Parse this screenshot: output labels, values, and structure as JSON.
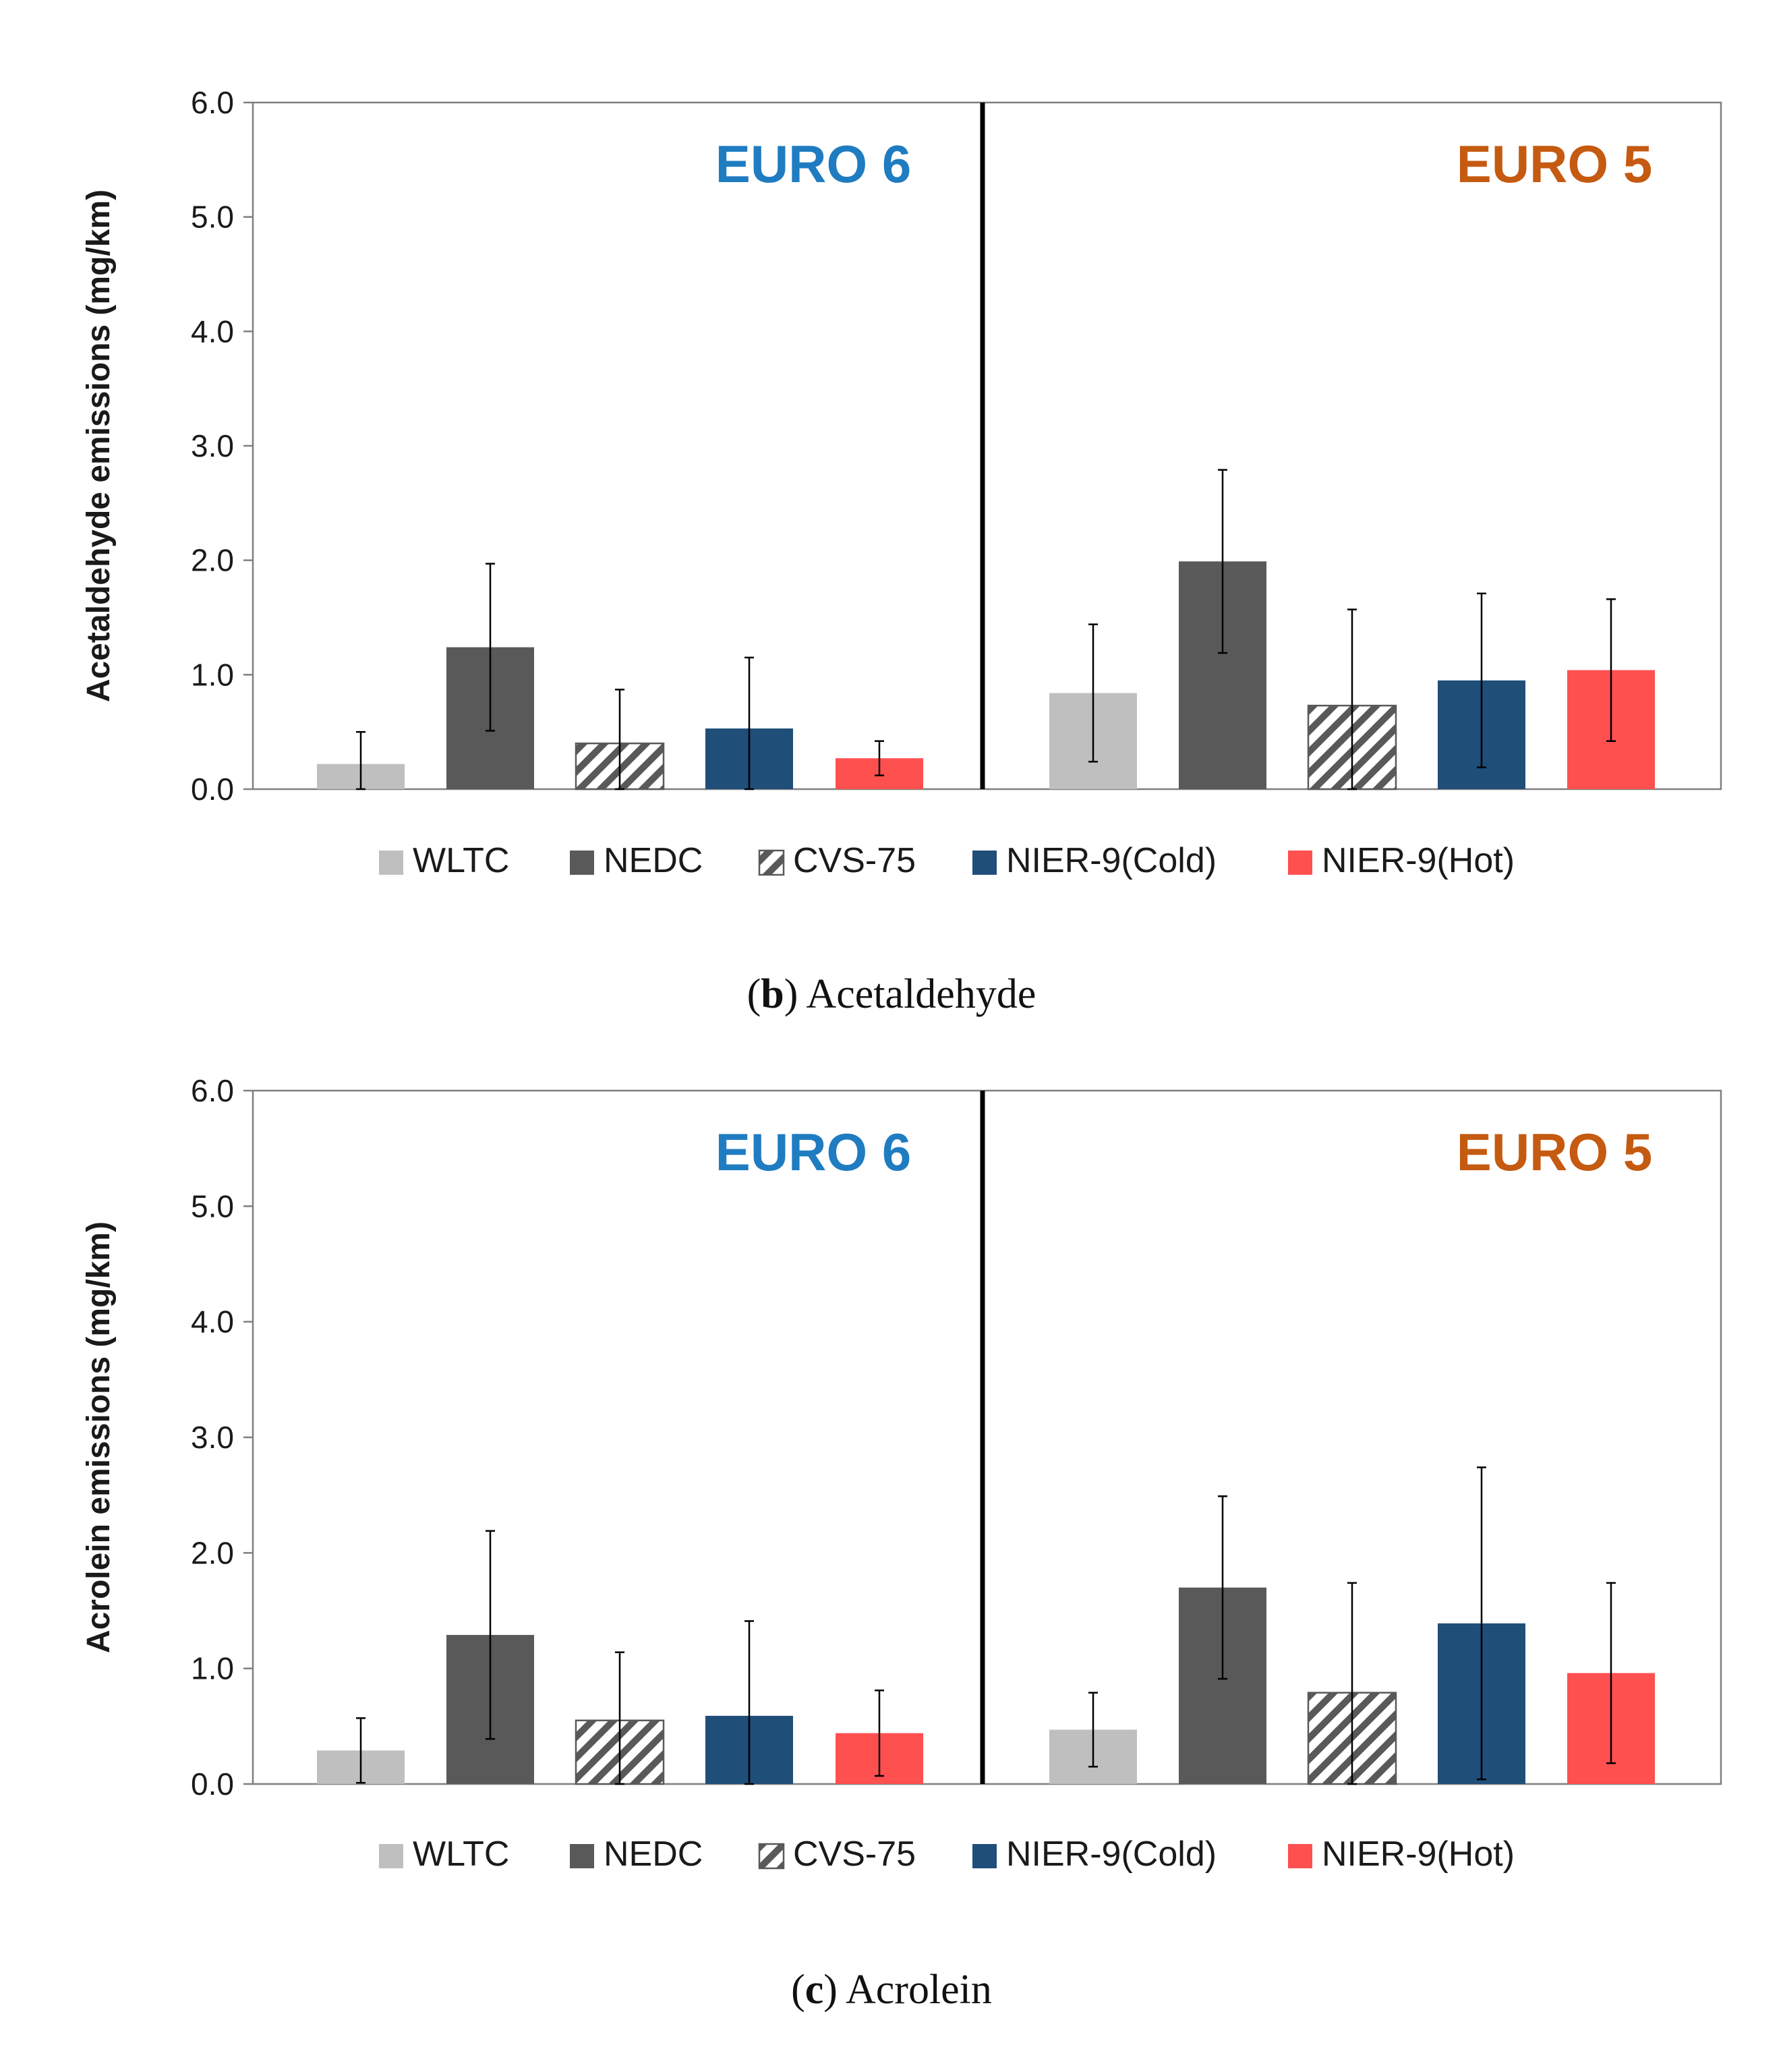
{
  "chart_data": [
    {
      "type": "bar",
      "panel_id": "b",
      "caption_letter": "b",
      "caption_text": "Acetaldehyde",
      "ylabel": "Acetaldehyde emissions (mg/km)",
      "ylim": [
        0,
        6
      ],
      "yticks": [
        "0.0",
        "1.0",
        "2.0",
        "3.0",
        "4.0",
        "5.0",
        "6.0"
      ],
      "groups": [
        {
          "name": "EURO 6",
          "color": "#1f7cc1"
        },
        {
          "name": "EURO 5",
          "color": "#c55a11"
        }
      ],
      "series": [
        {
          "name": "WLTC",
          "color": "#bfbfbf",
          "pattern": "solid",
          "values": [
            0.22,
            0.84
          ],
          "error": [
            0.28,
            0.6
          ]
        },
        {
          "name": "NEDC",
          "color": "#595959",
          "pattern": "solid",
          "values": [
            1.24,
            1.99
          ],
          "error": [
            0.73,
            0.8
          ]
        },
        {
          "name": "CVS-75",
          "color": "#595959",
          "pattern": "hatch",
          "values": [
            0.4,
            0.73
          ],
          "error": [
            0.47,
            0.84
          ]
        },
        {
          "name": "NIER-9(Cold)",
          "color": "#1f4e79",
          "pattern": "solid",
          "values": [
            0.53,
            0.95
          ],
          "error": [
            0.62,
            0.76
          ]
        },
        {
          "name": "NIER-9(Hot)",
          "color": "#ff5050",
          "pattern": "solid",
          "values": [
            0.27,
            1.04
          ],
          "error": [
            0.15,
            0.62
          ]
        }
      ]
    },
    {
      "type": "bar",
      "panel_id": "c",
      "caption_letter": "c",
      "caption_text": "Acrolein",
      "ylabel": "Acrolein emissions (mg/km)",
      "ylim": [
        0,
        6
      ],
      "yticks": [
        "0.0",
        "1.0",
        "2.0",
        "3.0",
        "4.0",
        "5.0",
        "6.0"
      ],
      "groups": [
        {
          "name": "EURO 6",
          "color": "#1f7cc1"
        },
        {
          "name": "EURO 5",
          "color": "#c55a11"
        }
      ],
      "series": [
        {
          "name": "WLTC",
          "color": "#bfbfbf",
          "pattern": "solid",
          "values": [
            0.29,
            0.47
          ],
          "error": [
            0.28,
            0.32
          ]
        },
        {
          "name": "NEDC",
          "color": "#595959",
          "pattern": "solid",
          "values": [
            1.29,
            1.7
          ],
          "error": [
            0.9,
            0.79
          ]
        },
        {
          "name": "CVS-75",
          "color": "#595959",
          "pattern": "hatch",
          "values": [
            0.55,
            0.79
          ],
          "error": [
            0.59,
            0.95
          ]
        },
        {
          "name": "NIER-9(Cold)",
          "color": "#1f4e79",
          "pattern": "solid",
          "values": [
            0.59,
            1.39
          ],
          "error": [
            0.82,
            1.35
          ]
        },
        {
          "name": "NIER-9(Hot)",
          "color": "#ff5050",
          "pattern": "solid",
          "values": [
            0.44,
            0.96
          ],
          "error": [
            0.37,
            0.78
          ]
        }
      ]
    }
  ]
}
